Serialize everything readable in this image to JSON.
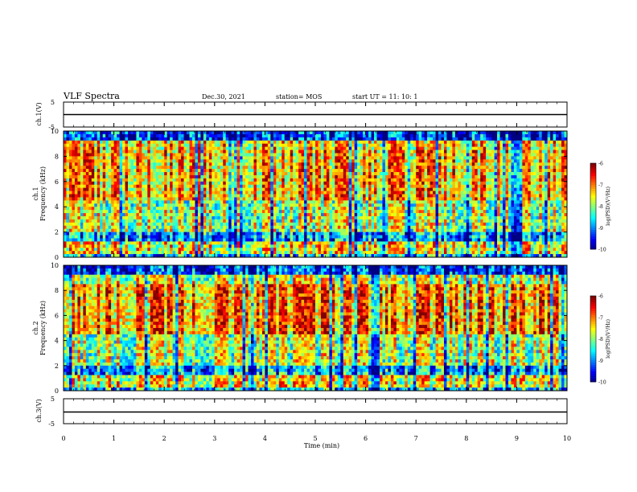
{
  "header": {
    "title": "VLF Spectra",
    "date": "Dec.30, 2021",
    "station": "station= MOS",
    "start": "start  UT =   11: 10: 1"
  },
  "chart_data": [
    {
      "type": "line",
      "name": "channel-1-waveform",
      "ylabel": "ch.1(V)",
      "ylim": [
        -5,
        5
      ],
      "yticks": [
        "5",
        "-5"
      ],
      "xlim": [
        0,
        10
      ],
      "series_value": 0
    },
    {
      "type": "heatmap",
      "name": "channel-1-spectrogram",
      "ylabel_top": "ch.1",
      "ylabel": "Frequency (kHz)",
      "ylim": [
        0,
        10
      ],
      "yticks": [
        "0",
        "2",
        "4",
        "6",
        "8",
        "10"
      ],
      "xlim": [
        0,
        10
      ],
      "colorbar": {
        "label": "log(PSD)(V²/Hz)",
        "range": [
          -10,
          -6
        ],
        "ticks": [
          "-6",
          "-7",
          "-8",
          "-9",
          "-10"
        ]
      }
    },
    {
      "type": "heatmap",
      "name": "channel-2-spectrogram",
      "ylabel_top": "ch.2",
      "ylabel": "Frequency (kHz)",
      "ylim": [
        0,
        10
      ],
      "yticks": [
        "0",
        "2",
        "4",
        "6",
        "8",
        "10"
      ],
      "xlim": [
        0,
        10
      ],
      "colorbar": {
        "label": "log(PSD)(V²/Hz)",
        "range": [
          -10,
          -6
        ],
        "ticks": [
          "-6",
          "-7",
          "-8",
          "-9",
          "-10"
        ]
      }
    },
    {
      "type": "line",
      "name": "channel-3-waveform",
      "ylabel": "ch.3(V)",
      "ylim": [
        -5,
        5
      ],
      "yticks": [
        "5",
        "-5"
      ],
      "xlim": [
        0,
        10
      ],
      "series_value": 0,
      "xlabel": "Time  (min)",
      "xticks": [
        "0",
        "1",
        "2",
        "3",
        "4",
        "5",
        "6",
        "7",
        "8",
        "9",
        "10"
      ]
    }
  ]
}
